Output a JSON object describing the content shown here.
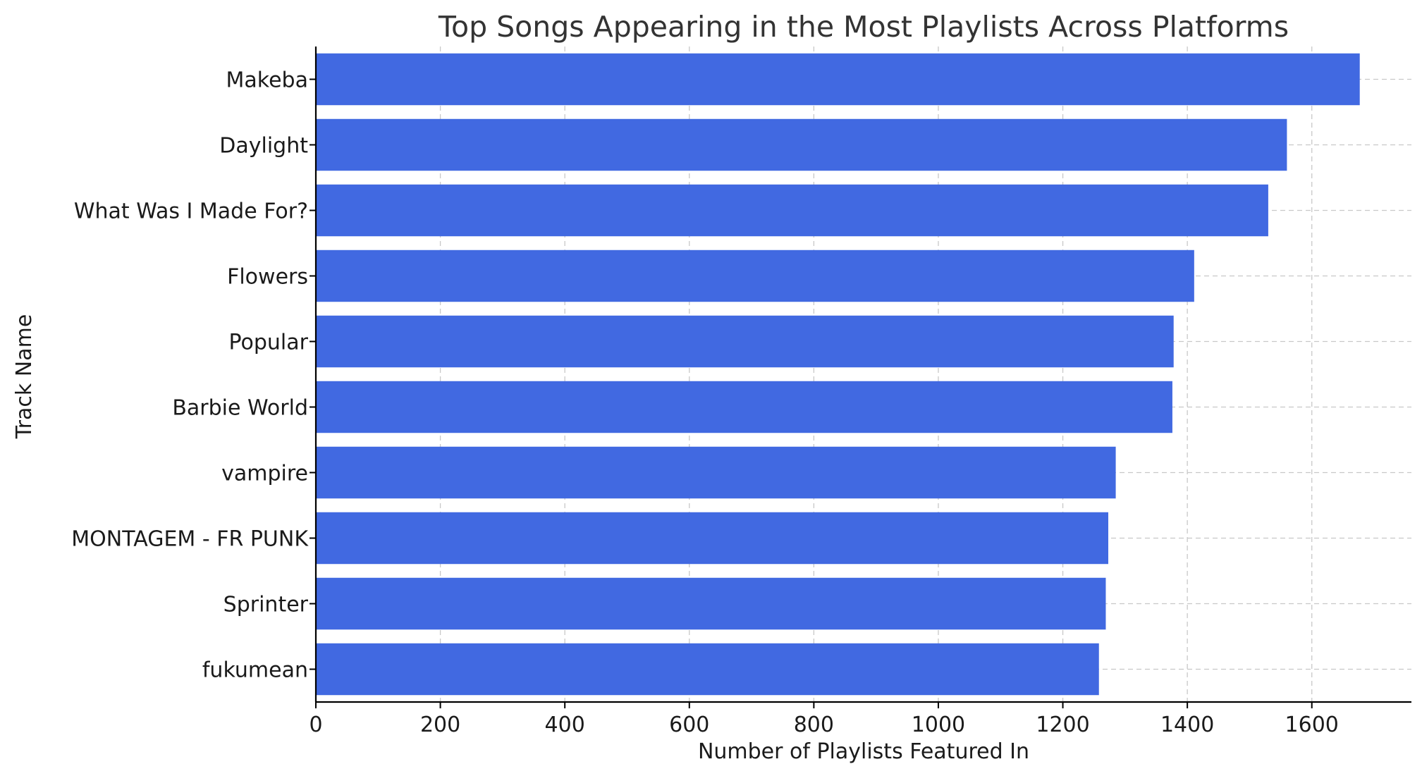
{
  "chart_data": {
    "type": "bar",
    "orientation": "horizontal",
    "title": "Top Songs Appearing in the Most Playlists Across Platforms",
    "xlabel": "Number of Playlists Featured In",
    "ylabel": "Track Name",
    "categories": [
      "Makeba",
      "Daylight",
      "What Was I Made For?",
      "Flowers",
      "Popular",
      "Barbie World",
      "vampire",
      "MONTAGEM - FR PUNK",
      "Sprinter",
      "fukumean"
    ],
    "values": [
      1677,
      1560,
      1530,
      1411,
      1378,
      1376,
      1285,
      1273,
      1269,
      1258
    ],
    "xlim": [
      0,
      1760
    ],
    "xticks": [
      0,
      200,
      400,
      600,
      800,
      1000,
      1200,
      1400,
      1600
    ],
    "grid": true,
    "bar_color": "#4169e1"
  }
}
